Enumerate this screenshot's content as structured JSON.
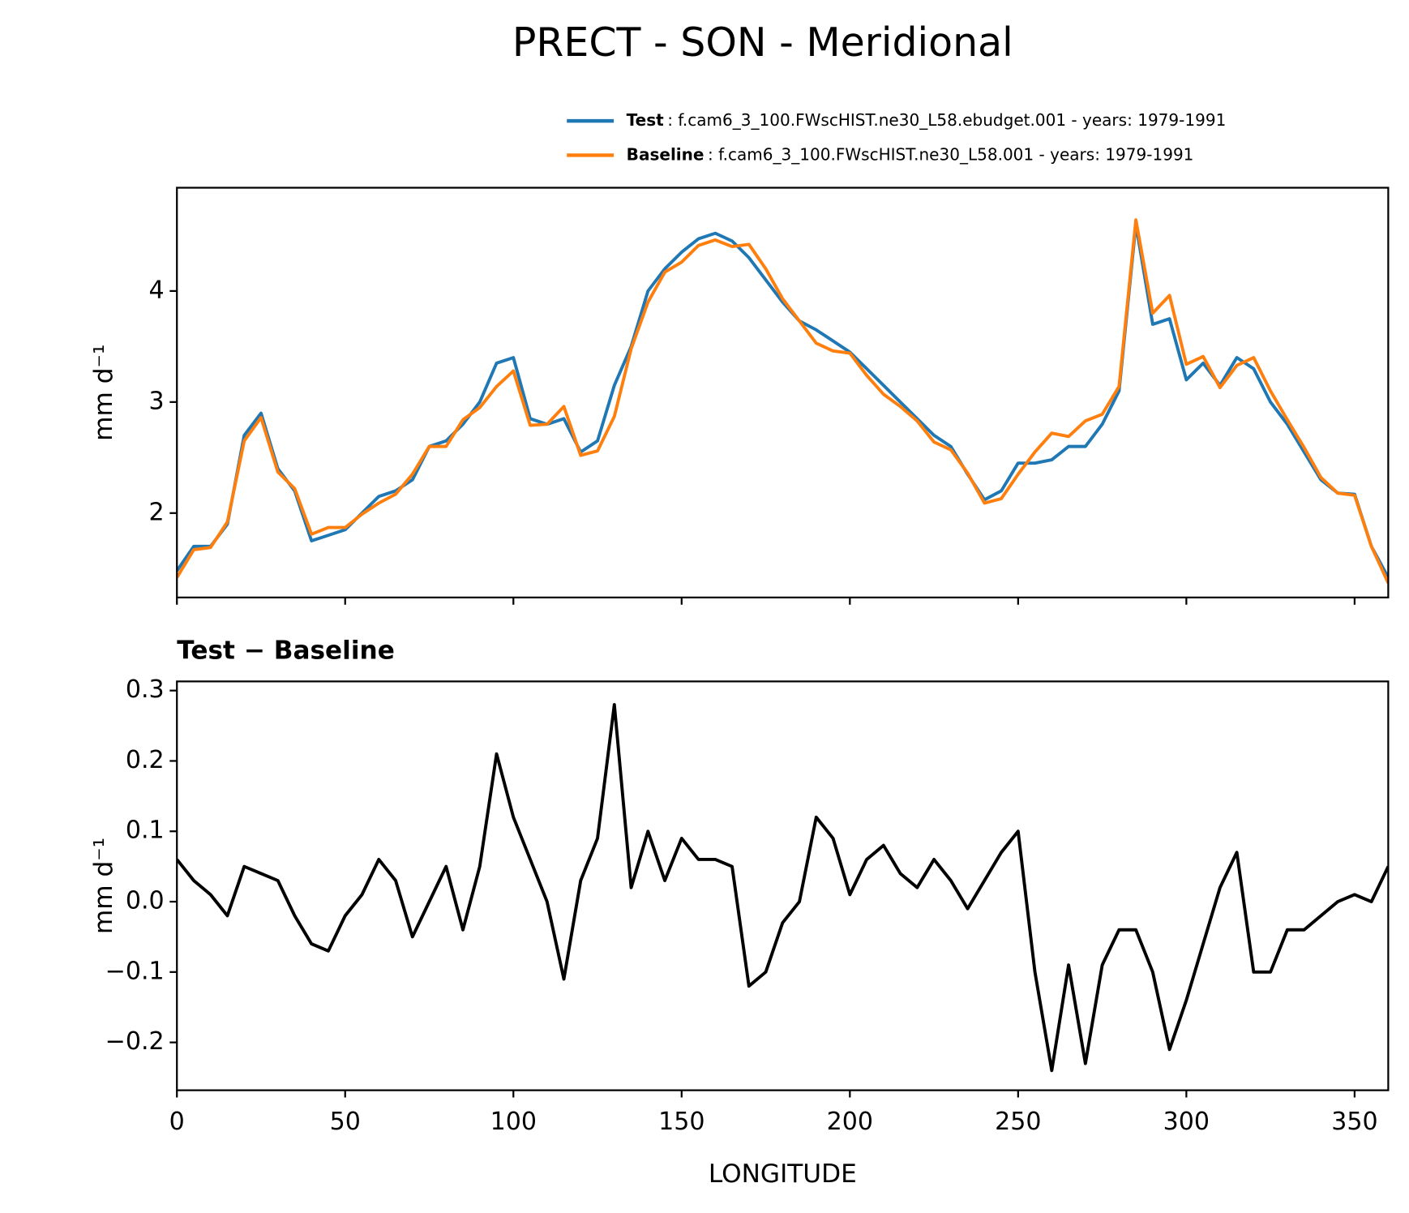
{
  "title": "PRECT - SON - Meridional",
  "chart_data": [
    {
      "type": "line",
      "y_label": "mm d⁻¹",
      "x": [
        0,
        5,
        10,
        15,
        20,
        25,
        30,
        35,
        40,
        45,
        50,
        55,
        60,
        65,
        70,
        75,
        80,
        85,
        90,
        95,
        100,
        105,
        110,
        115,
        120,
        125,
        130,
        135,
        140,
        145,
        150,
        155,
        160,
        165,
        170,
        175,
        180,
        185,
        190,
        195,
        200,
        205,
        210,
        215,
        220,
        225,
        230,
        235,
        240,
        245,
        250,
        255,
        260,
        265,
        270,
        275,
        280,
        285,
        290,
        295,
        300,
        305,
        310,
        315,
        320,
        325,
        330,
        335,
        340,
        345,
        350,
        355,
        360
      ],
      "series": [
        {
          "name": "Test",
          "description": ": f.cam6_3_100.FWscHIST.ne30_L58.ebudget.001 - years: 1979-1991",
          "color": "#1f77b4",
          "values": [
            1.48,
            1.7,
            1.7,
            1.9,
            2.7,
            2.9,
            2.4,
            2.2,
            1.75,
            1.8,
            1.85,
            2.0,
            2.15,
            2.2,
            2.3,
            2.6,
            2.65,
            2.8,
            3.0,
            3.35,
            3.4,
            2.85,
            2.8,
            2.85,
            2.55,
            2.65,
            3.15,
            3.5,
            4.0,
            4.2,
            4.35,
            4.47,
            4.52,
            4.45,
            4.3,
            4.1,
            3.9,
            3.73,
            3.65,
            3.55,
            3.45,
            3.3,
            3.15,
            3.0,
            2.85,
            2.7,
            2.6,
            2.35,
            2.12,
            2.2,
            2.45,
            2.45,
            2.48,
            2.6,
            2.6,
            2.8,
            3.1,
            4.6,
            3.7,
            3.75,
            3.2,
            3.35,
            3.15,
            3.4,
            3.3,
            3.0,
            2.8,
            2.55,
            2.3,
            2.18,
            2.17,
            1.7,
            1.42
          ]
        },
        {
          "name": "Baseline",
          "description": ": f.cam6_3_100.FWscHIST.ne30_L58.001 - years: 1979-1991",
          "color": "#ff7f0e",
          "values": [
            1.42,
            1.67,
            1.69,
            1.92,
            2.65,
            2.86,
            2.37,
            2.22,
            1.81,
            1.87,
            1.87,
            1.99,
            2.09,
            2.17,
            2.35,
            2.6,
            2.6,
            2.84,
            2.95,
            3.14,
            3.28,
            2.79,
            2.8,
            2.96,
            2.52,
            2.56,
            2.87,
            3.48,
            3.9,
            4.17,
            4.26,
            4.41,
            4.46,
            4.4,
            4.42,
            4.2,
            3.93,
            3.73,
            3.53,
            3.46,
            3.44,
            3.24,
            3.07,
            2.96,
            2.83,
            2.64,
            2.57,
            2.36,
            2.09,
            2.13,
            2.35,
            2.55,
            2.72,
            2.69,
            2.83,
            2.89,
            3.14,
            4.64,
            3.8,
            3.96,
            3.34,
            3.41,
            3.13,
            3.33,
            3.4,
            3.1,
            2.84,
            2.59,
            2.32,
            2.18,
            2.16,
            1.7,
            1.37
          ]
        }
      ],
      "xlim": [
        0,
        360
      ],
      "xticks": [
        0,
        50,
        100,
        150,
        200,
        250,
        300,
        350
      ],
      "ylim": [
        1.24,
        4.93
      ],
      "yticks": [
        2,
        3,
        4
      ]
    },
    {
      "type": "line",
      "title": "Test − Baseline",
      "x_label": "LONGITUDE",
      "y_label": "mm d⁻¹",
      "x": [
        0,
        5,
        10,
        15,
        20,
        25,
        30,
        35,
        40,
        45,
        50,
        55,
        60,
        65,
        70,
        75,
        80,
        85,
        90,
        95,
        100,
        105,
        110,
        115,
        120,
        125,
        130,
        135,
        140,
        145,
        150,
        155,
        160,
        165,
        170,
        175,
        180,
        185,
        190,
        195,
        200,
        205,
        210,
        215,
        220,
        225,
        230,
        235,
        240,
        245,
        250,
        255,
        260,
        265,
        270,
        275,
        280,
        285,
        290,
        295,
        300,
        305,
        310,
        315,
        320,
        325,
        330,
        335,
        340,
        345,
        350,
        355,
        360
      ],
      "series": [
        {
          "color": "#000000",
          "values": [
            0.06,
            0.03,
            0.01,
            -0.02,
            0.05,
            0.04,
            0.03,
            -0.02,
            -0.06,
            -0.07,
            -0.02,
            0.01,
            0.06,
            0.03,
            -0.05,
            0.0,
            0.05,
            -0.04,
            0.05,
            0.21,
            0.12,
            0.06,
            0.0,
            -0.11,
            0.03,
            0.09,
            0.28,
            0.02,
            0.1,
            0.03,
            0.09,
            0.06,
            0.06,
            0.05,
            -0.12,
            -0.1,
            -0.03,
            0.0,
            0.12,
            0.09,
            0.01,
            0.06,
            0.08,
            0.04,
            0.02,
            0.06,
            0.03,
            -0.01,
            0.03,
            0.07,
            0.1,
            -0.1,
            -0.24,
            -0.09,
            -0.23,
            -0.09,
            -0.04,
            -0.04,
            -0.1,
            -0.21,
            -0.14,
            -0.06,
            0.02,
            0.07,
            -0.1,
            -0.1,
            -0.04,
            -0.04,
            -0.02,
            0.0,
            0.01,
            0.0,
            0.05
          ]
        }
      ],
      "xlim": [
        0,
        360
      ],
      "xticks": [
        0,
        50,
        100,
        150,
        200,
        250,
        300,
        350
      ],
      "ylim": [
        -0.268,
        0.313
      ],
      "yticks": [
        {
          "value": -0.2,
          "label": "−0.2"
        },
        {
          "value": -0.1,
          "label": "−0.1"
        },
        {
          "value": 0,
          "label": "0.0"
        },
        0.1,
        0.2,
        0.3
      ]
    }
  ]
}
